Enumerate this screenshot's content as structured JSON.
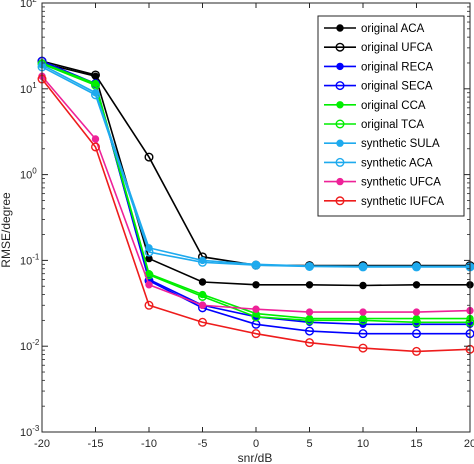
{
  "chart_data": {
    "type": "line",
    "xlabel": "snr/dB",
    "ylabel": "RMSE/degree",
    "xlim": [
      -20,
      20
    ],
    "ylim_log10": [
      -3,
      2
    ],
    "yscale": "log",
    "x_ticks": [
      "-20",
      "-15",
      "-10",
      "-5",
      "0",
      "5",
      "10",
      "15",
      "20"
    ],
    "y_ticks": [
      {
        "base": "10",
        "exp": "-3"
      },
      {
        "base": "10",
        "exp": "-2"
      },
      {
        "base": "10",
        "exp": "-1"
      },
      {
        "base": "10",
        "exp": "0"
      },
      {
        "base": "10",
        "exp": "1"
      },
      {
        "base": "10",
        "exp": "2"
      }
    ],
    "grid": false,
    "legend_position": "top-right",
    "x": [
      -20,
      -15,
      -10,
      -5,
      0,
      5,
      10,
      15,
      20
    ],
    "series": [
      {
        "name": "original ACA",
        "color": "#000000",
        "marker": "filled-circle",
        "values": [
          20,
          14,
          0.105,
          0.056,
          0.052,
          0.052,
          0.051,
          0.052,
          0.052
        ]
      },
      {
        "name": "original UFCA",
        "color": "#000000",
        "marker": "open-circle",
        "values": [
          21,
          14.5,
          1.6,
          0.11,
          0.088,
          0.087,
          0.087,
          0.087,
          0.087
        ]
      },
      {
        "name": "original RECA",
        "color": "#0000ff",
        "marker": "filled-circle",
        "values": [
          20,
          11.5,
          0.06,
          0.03,
          0.022,
          0.019,
          0.018,
          0.018,
          0.018
        ]
      },
      {
        "name": "original SECA",
        "color": "#0000ff",
        "marker": "open-circle",
        "values": [
          21,
          11.5,
          0.058,
          0.028,
          0.018,
          0.015,
          0.014,
          0.014,
          0.014
        ]
      },
      {
        "name": "original CCA",
        "color": "#00ee00",
        "marker": "filled-circle",
        "values": [
          20,
          11.5,
          0.07,
          0.04,
          0.024,
          0.021,
          0.021,
          0.021,
          0.021
        ]
      },
      {
        "name": "original TCA",
        "color": "#00ee00",
        "marker": "open-circle",
        "values": [
          19.5,
          11,
          0.068,
          0.038,
          0.022,
          0.02,
          0.02,
          0.019,
          0.019
        ]
      },
      {
        "name": "synthetic SULA",
        "color": "#1eaaee",
        "marker": "filled-circle",
        "values": [
          19,
          9,
          0.14,
          0.1,
          0.09,
          0.086,
          0.085,
          0.085,
          0.085
        ]
      },
      {
        "name": "synthetic ACA",
        "color": "#1eaaee",
        "marker": "open-circle",
        "values": [
          18,
          8.5,
          0.125,
          0.095,
          0.088,
          0.085,
          0.084,
          0.084,
          0.084
        ]
      },
      {
        "name": "synthetic UFCA",
        "color": "#ee2298",
        "marker": "filled-circle",
        "values": [
          14,
          2.6,
          0.052,
          0.03,
          0.027,
          0.025,
          0.025,
          0.025,
          0.026
        ]
      },
      {
        "name": "synthetic IUFCA",
        "color": "#ee1c1c",
        "marker": "open-circle",
        "values": [
          13,
          2.1,
          0.03,
          0.019,
          0.014,
          0.011,
          0.0095,
          0.0087,
          0.0092
        ]
      }
    ]
  }
}
